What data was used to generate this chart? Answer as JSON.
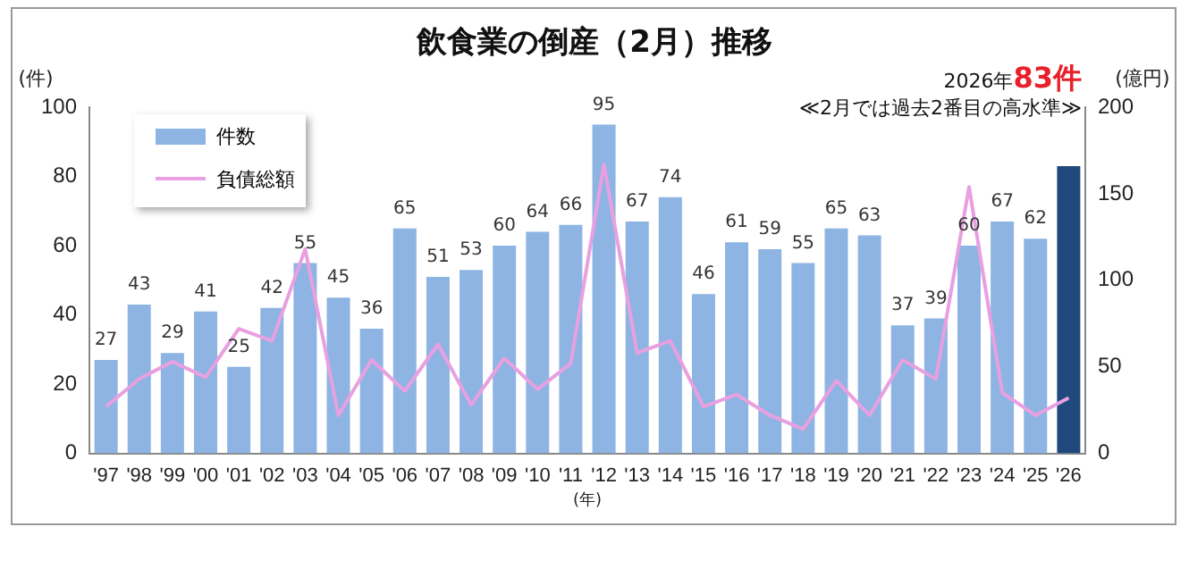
{
  "chart_data": {
    "type": "bar",
    "title": "飲食業の倒産（2月）推移",
    "ylabel": "(件)",
    "y2label": "(億円)",
    "xlabel": "(年)",
    "annotations": [
      "2026年",
      "83件",
      "≪2月では過去2番目の高水準≫"
    ],
    "categories": [
      "'97",
      "'98",
      "'99",
      "'00",
      "'01",
      "'02",
      "'03",
      "'04",
      "'05",
      "'06",
      "'07",
      "'08",
      "'09",
      "'10",
      "'11",
      "'12",
      "'13",
      "'14",
      "'15",
      "'16",
      "'17",
      "'18",
      "'19",
      "'20",
      "'21",
      "'22",
      "'23",
      "'24",
      "'25",
      "'26"
    ],
    "series": [
      {
        "name": "件数",
        "colors": [
          "#8db4e2",
          "#8db4e2",
          "#8db4e2",
          "#8db4e2",
          "#8db4e2",
          "#8db4e2",
          "#8db4e2",
          "#8db4e2",
          "#8db4e2",
          "#8db4e2",
          "#8db4e2",
          "#8db4e2",
          "#8db4e2",
          "#8db4e2",
          "#8db4e2",
          "#8db4e2",
          "#8db4e2",
          "#8db4e2",
          "#8db4e2",
          "#8db4e2",
          "#8db4e2",
          "#8db4e2",
          "#8db4e2",
          "#8db4e2",
          "#8db4e2",
          "#8db4e2",
          "#8db4e2",
          "#8db4e2",
          "#8db4e2",
          "#1f497d"
        ],
        "values": [
          27,
          43,
          29,
          41,
          25,
          42,
          55,
          45,
          36,
          65,
          51,
          53,
          60,
          64,
          66,
          95,
          67,
          74,
          46,
          61,
          59,
          55,
          65,
          63,
          37,
          39,
          60,
          67,
          62,
          83
        ],
        "value_labels": [
          "27",
          "43",
          "29",
          "41",
          "25",
          "42",
          "55",
          "45",
          "36",
          "65",
          "51",
          "53",
          "60",
          "64",
          "66",
          "95",
          "67",
          "74",
          "46",
          "61",
          "59",
          "55",
          "65",
          "63",
          "37",
          "39",
          "60",
          "67",
          "62",
          null
        ]
      },
      {
        "name": "負債総額",
        "type": "line",
        "color": "#e8a0e0",
        "axis": "y2",
        "values": [
          27,
          43,
          53,
          44,
          72,
          65,
          118,
          22,
          54,
          36,
          63,
          28,
          55,
          37,
          52,
          167,
          58,
          65,
          27,
          34,
          22,
          14,
          42,
          22,
          54,
          43,
          154,
          35,
          22,
          32
        ]
      }
    ],
    "ylim": [
      0,
      100
    ],
    "yticks": [
      0,
      20,
      40,
      60,
      80,
      100
    ],
    "y2lim": [
      0,
      200
    ],
    "y2ticks": [
      0,
      50,
      100,
      150,
      200
    ],
    "grid": false,
    "legend": "top left",
    "marker": "none",
    "line_style": "solid"
  }
}
